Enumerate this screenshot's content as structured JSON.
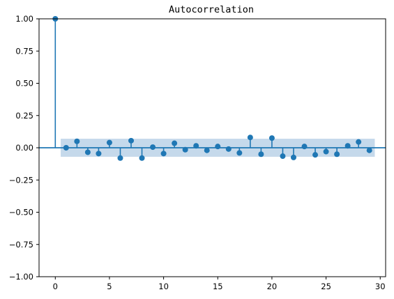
{
  "chart_data": {
    "type": "scatter",
    "subtype": "stem",
    "title": "Autocorrelation",
    "xlabel": "",
    "ylabel": "",
    "xlim": [
      -1.5,
      30.5
    ],
    "ylim": [
      -1.0,
      1.0
    ],
    "x_ticks": [
      0,
      5,
      10,
      15,
      20,
      25,
      30
    ],
    "y_ticks": [
      1.0,
      0.75,
      0.5,
      0.25,
      0.0,
      -0.25,
      -0.5,
      -0.75,
      -1.0
    ],
    "x_tick_labels": [
      "0",
      "5",
      "10",
      "15",
      "20",
      "25",
      "30"
    ],
    "y_tick_labels": [
      "1.00",
      "0.75",
      "0.50",
      "0.25",
      "0.00",
      "−0.25",
      "−0.50",
      "−0.75",
      "−1.00"
    ],
    "grid": false,
    "legend": false,
    "series": [
      {
        "lags": [
          0,
          1,
          2,
          3,
          4,
          5,
          6,
          7,
          8,
          9,
          10,
          11,
          12,
          13,
          14,
          15,
          16,
          17,
          18,
          19,
          20,
          21,
          22,
          23,
          24,
          25,
          26,
          27,
          28,
          29
        ],
        "values": [
          1.0,
          0.0,
          0.05,
          -0.035,
          -0.045,
          0.04,
          -0.08,
          0.055,
          -0.08,
          0.005,
          -0.045,
          0.035,
          -0.015,
          0.015,
          -0.02,
          0.01,
          -0.01,
          -0.04,
          0.08,
          -0.05,
          0.075,
          -0.065,
          -0.075,
          0.01,
          -0.055,
          -0.03,
          -0.05,
          0.015,
          0.045,
          -0.02
        ]
      }
    ],
    "confidence_band": {
      "x_start": 0.5,
      "x_end": 29.5,
      "upper": 0.07,
      "lower": -0.07
    },
    "colors": {
      "stem": "#1f77b4",
      "band": "#c5d9eb",
      "axis": "#000000"
    }
  }
}
